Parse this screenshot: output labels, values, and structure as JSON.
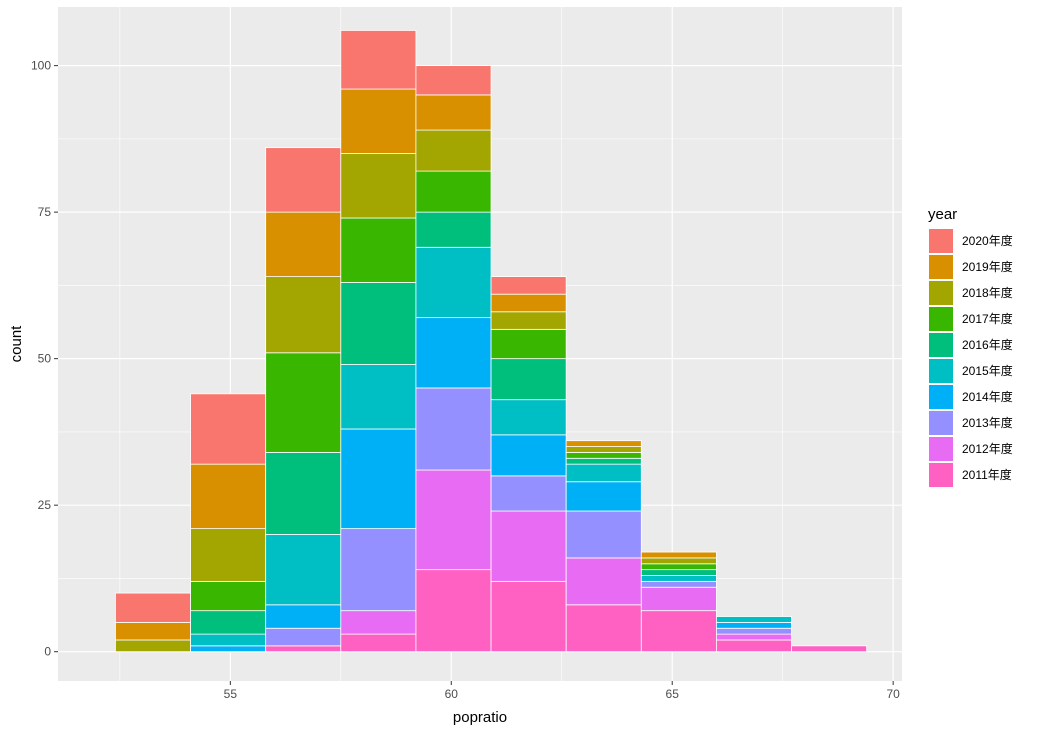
{
  "chart_data": {
    "type": "bar",
    "stacked": true,
    "histogram": true,
    "xlabel": "popratio",
    "ylabel": "count",
    "xlim": [
      51.1,
      70.2
    ],
    "ylim": [
      -5,
      110
    ],
    "x_ticks": [
      55,
      60,
      65,
      70
    ],
    "y_ticks": [
      0,
      25,
      50,
      75,
      100
    ],
    "grid": true,
    "legend": {
      "title": "year",
      "position": "right"
    },
    "bins": [
      [
        52.4,
        54.1
      ],
      [
        54.1,
        55.8
      ],
      [
        55.8,
        57.5
      ],
      [
        57.5,
        59.2
      ],
      [
        59.2,
        60.9
      ],
      [
        60.9,
        62.6
      ],
      [
        62.6,
        64.3
      ],
      [
        64.3,
        66.0
      ],
      [
        66.0,
        67.7
      ],
      [
        67.7,
        69.4
      ]
    ],
    "series": [
      {
        "name": "2011年度",
        "color": "#FF61C3",
        "values": [
          0,
          0,
          1,
          3,
          14,
          12,
          8,
          7,
          2,
          1
        ]
      },
      {
        "name": "2012年度",
        "color": "#E76BF3",
        "values": [
          0,
          0,
          0,
          4,
          17,
          12,
          8,
          4,
          1,
          0
        ]
      },
      {
        "name": "2013年度",
        "color": "#9590FF",
        "values": [
          0,
          0,
          3,
          14,
          14,
          6,
          8,
          1,
          1,
          0
        ]
      },
      {
        "name": "2014年度",
        "color": "#00B0F6",
        "values": [
          0,
          1,
          4,
          17,
          12,
          7,
          5,
          0,
          1,
          0
        ]
      },
      {
        "name": "2015年度",
        "color": "#00BFC4",
        "values": [
          0,
          2,
          12,
          11,
          12,
          6,
          3,
          1,
          1,
          0
        ]
      },
      {
        "name": "2016年度",
        "color": "#00BF7D",
        "values": [
          0,
          4,
          14,
          14,
          6,
          7,
          1,
          1,
          0,
          0
        ]
      },
      {
        "name": "2017年度",
        "color": "#39B600",
        "values": [
          0,
          5,
          17,
          11,
          7,
          5,
          1,
          1,
          0,
          0
        ]
      },
      {
        "name": "2018年度",
        "color": "#A3A500",
        "values": [
          2,
          9,
          13,
          11,
          7,
          3,
          1,
          1,
          0,
          0
        ]
      },
      {
        "name": "2019年度",
        "color": "#D89000",
        "values": [
          3,
          11,
          11,
          11,
          6,
          3,
          1,
          1,
          0,
          0
        ]
      },
      {
        "name": "2020年度",
        "color": "#F8766D",
        "values": [
          5,
          12,
          11,
          10,
          5,
          3,
          0,
          0,
          0,
          0
        ]
      }
    ],
    "legend_order": [
      "2020年度",
      "2019年度",
      "2018年度",
      "2017年度",
      "2016年度",
      "2015年度",
      "2014年度",
      "2013年度",
      "2012年度",
      "2011年度"
    ]
  },
  "colors": {
    "panel_bg": "#EBEBEB",
    "grid_major": "#FFFFFF",
    "bar_outline": "#FFFFFF"
  }
}
